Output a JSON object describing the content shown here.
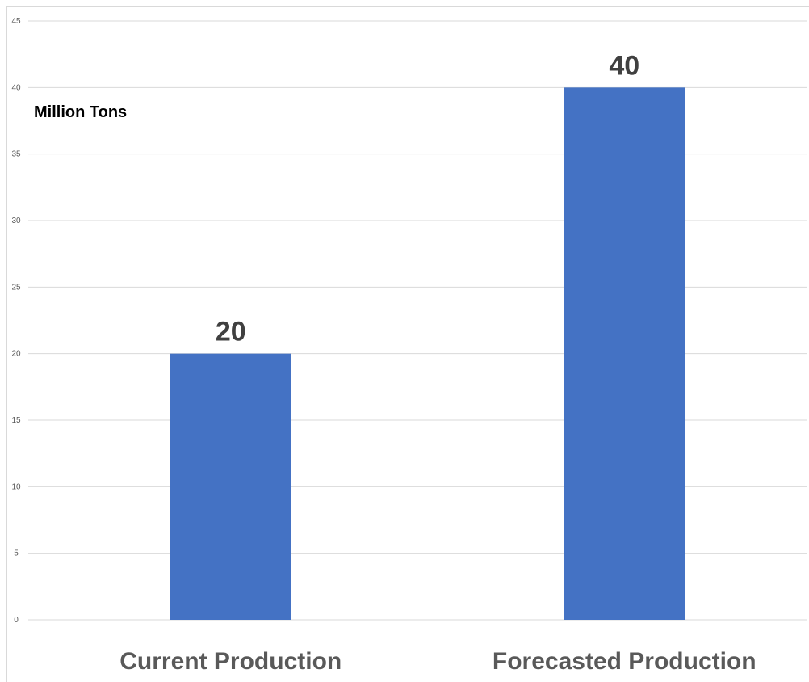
{
  "chart_data": {
    "type": "bar",
    "categories": [
      "Current Production",
      "Forecasted Production"
    ],
    "values": [
      20,
      40
    ],
    "data_labels": [
      "20",
      "40"
    ],
    "title": "",
    "xlabel": "",
    "ylabel": "Million Tons",
    "ylim": [
      0,
      45
    ],
    "yticks": [
      0,
      5,
      10,
      15,
      20,
      25,
      30,
      35,
      40,
      45
    ],
    "grid": true,
    "legend": "none",
    "bar_color": "#4472C4"
  }
}
